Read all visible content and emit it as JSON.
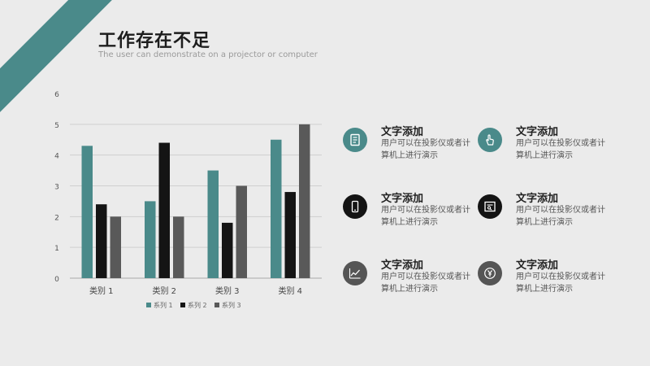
{
  "slide": {
    "title": "工作存在不足",
    "subtitle": "The user can demonstrate on a projector or computer"
  },
  "chart_data": {
    "type": "bar",
    "categories": [
      "类别 1",
      "类别 2",
      "类别 3",
      "类别 4"
    ],
    "series": [
      {
        "name": "系列 1",
        "values": [
          4.3,
          2.5,
          3.5,
          4.5
        ],
        "color": "#4a8a8a"
      },
      {
        "name": "系列 2",
        "values": [
          2.4,
          4.4,
          1.8,
          2.8
        ],
        "color": "#141414"
      },
      {
        "name": "系列 3",
        "values": [
          2.0,
          2.0,
          3.0,
          5.0
        ],
        "color": "#595959"
      }
    ],
    "yticks": [
      "0",
      "1",
      "2",
      "3",
      "4",
      "5",
      "6"
    ],
    "ylim": [
      0,
      6
    ],
    "grid": true,
    "legend": "bottom"
  },
  "features": [
    {
      "title": "文字添加",
      "desc": "用户可以在投影仪或者计算机上进行演示",
      "icon": "document-icon",
      "color": "#4a8a8a"
    },
    {
      "title": "文字添加",
      "desc": "用户可以在投影仪或者计算机上进行演示",
      "icon": "hand-pointer-icon",
      "color": "#4a8a8a"
    },
    {
      "title": "文字添加",
      "desc": "用户可以在投影仪或者计算机上进行演示",
      "icon": "phone-icon",
      "color": "#141414"
    },
    {
      "title": "文字添加",
      "desc": "用户可以在投影仪或者计算机上进行演示",
      "icon": "report-icon",
      "color": "#141414"
    },
    {
      "title": "文字添加",
      "desc": "用户可以在投影仪或者计算机上进行演示",
      "icon": "line-chart-icon",
      "color": "#555555"
    },
    {
      "title": "文字添加",
      "desc": "用户可以在投影仪或者计算机上进行演示",
      "icon": "yen-coin-icon",
      "color": "#555555"
    }
  ]
}
